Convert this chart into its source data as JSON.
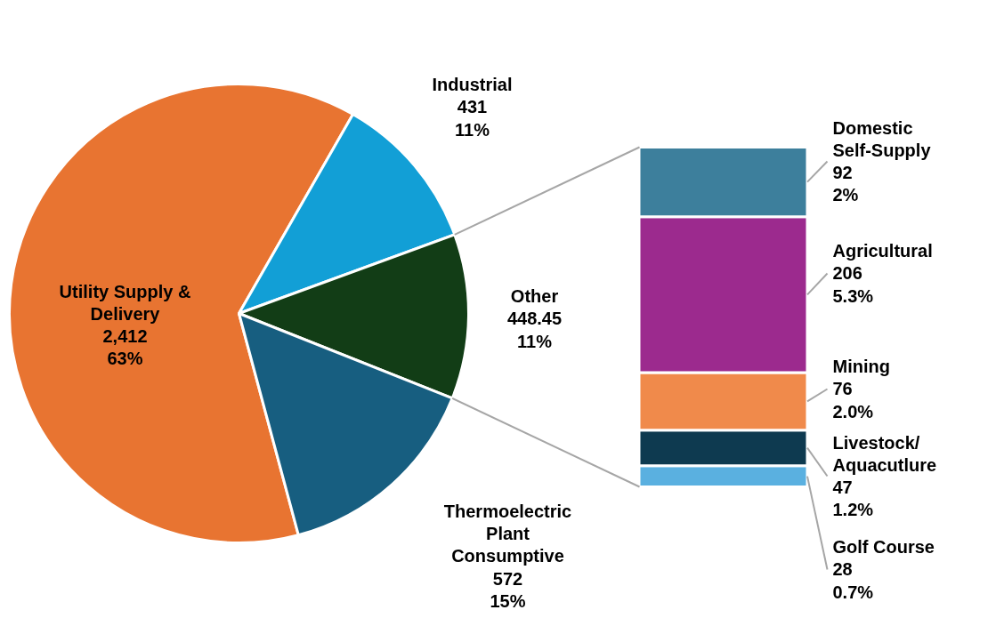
{
  "chart_data": [
    {
      "type": "pie",
      "categories": [
        "Utility Supply & Delivery",
        "Industrial",
        "Other",
        "Thermoelectric Plant Consumptive"
      ],
      "values": [
        2412,
        431,
        448.45,
        572
      ],
      "colors": [
        "#e87431",
        "#129fd6",
        "#123d16",
        "#175e80"
      ],
      "value_labels": [
        "2,412\n63%",
        "431\n11%",
        "448.45\n11%",
        "572\n15%"
      ]
    },
    {
      "type": "bar",
      "stacked": true,
      "categories": [
        null
      ],
      "series": [
        {
          "name": "Golf Course",
          "color": "#5ab0e0",
          "values": [
            28
          ],
          "value_labels": [
            "28\n0.7%"
          ]
        },
        {
          "name": "Livestock/ Aquacutlure",
          "color": "#0e3a50",
          "values": [
            47
          ],
          "value_labels": [
            "47\n1.2%"
          ]
        },
        {
          "name": "Mining",
          "color": "#f08a4b",
          "values": [
            76
          ],
          "value_labels": [
            "76\n2.0%"
          ]
        },
        {
          "name": "Agricultural",
          "color": "#9c2a8e",
          "values": [
            206
          ],
          "value_labels": [
            "206\n5.3%"
          ]
        },
        {
          "name": "Domestic Self-Supply",
          "color": "#3d7f9c",
          "values": [
            92
          ],
          "value_labels": [
            "92\n2%"
          ]
        }
      ]
    }
  ]
}
